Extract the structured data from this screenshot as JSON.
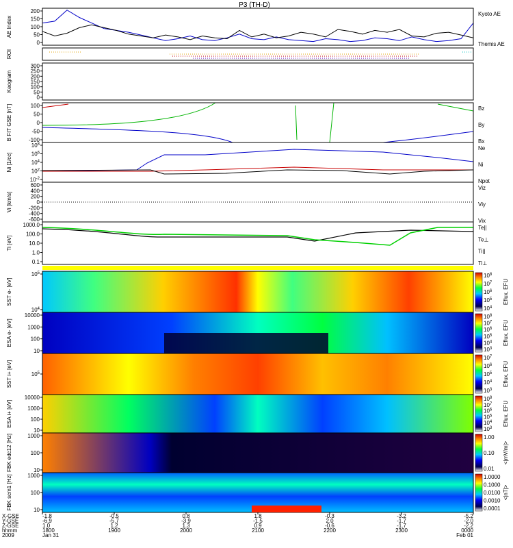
{
  "chart_data": {
    "type": "line",
    "title": "P3 (TH-D)",
    "panels": [
      {
        "id": "ae",
        "ylabel": "AE Index",
        "yticks": [
          "200",
          "150",
          "100",
          "50",
          "0"
        ],
        "legend": [
          "Kyoto AE",
          "Themis AE"
        ],
        "legend_colors": [
          "#0000c8",
          "#000000"
        ],
        "ylim": [
          0,
          200
        ],
        "series": [
          {
            "name": "Kyoto AE",
            "values": [
              120,
              130,
              190,
              150,
              120,
              90,
              80,
              70,
              55,
              40,
              25,
              35,
              50,
              30,
              25,
              40,
              60,
              35,
              30,
              45,
              30,
              25,
              20,
              35,
              30,
              20,
              25,
              40,
              35,
              25,
              45,
              30,
              20,
              25,
              35,
              120
            ]
          },
          {
            "name": "Themis AE",
            "values": [
              75,
              50,
              65,
              95,
              110,
              95,
              80,
              60,
              50,
              40,
              55,
              45,
              30,
              50,
              40,
              35,
              80,
              45,
              60,
              40,
              50,
              70,
              60,
              45,
              85,
              75,
              60,
              80,
              70,
              85,
              50,
              45,
              65,
              70,
              55,
              40
            ]
          }
        ]
      },
      {
        "id": "roi",
        "ylabel": "ROI"
      },
      {
        "id": "kp",
        "ylabel": "Keogram",
        "yticks": [
          "300",
          "250",
          "200",
          "150",
          "100",
          "50",
          "0"
        ]
      },
      {
        "id": "b",
        "ylabel": "B FIT GSE [nT]",
        "yticks": [
          "100",
          "50",
          "0",
          "-50",
          "-100"
        ],
        "legend": [
          "Bz",
          "By",
          "Bx"
        ],
        "legend_colors": [
          "#c80000",
          "#00b400",
          "#0000c8"
        ]
      },
      {
        "id": "n",
        "ylabel": "Ni [1/cc]",
        "yticks": [
          "10^8",
          "10^6",
          "10^4",
          "10^2",
          "10^-2"
        ],
        "legend": [
          "Ne",
          "Ni",
          "Npot"
        ],
        "legend_colors": [
          "#c80000",
          "#0000c8",
          "#000080"
        ]
      },
      {
        "id": "v",
        "ylabel": "Vi [km/s]",
        "yticks": [
          "600",
          "400",
          "200",
          "0",
          "-200",
          "-400",
          "-600"
        ],
        "legend": [
          "Viz",
          "Viy",
          "Vix"
        ],
        "legend_colors": [
          "#c80000",
          "#00b400",
          "#0000c8"
        ]
      },
      {
        "id": "t",
        "ylabel": "Ti [eV]",
        "yticks": [
          "1000.0",
          "100.0",
          "10.0",
          "1.0",
          "0.1"
        ],
        "legend": [
          "Te||",
          "Te⊥",
          "Ti||",
          "Ti⊥"
        ],
        "legend_colors": [
          "#000000",
          "#c80000",
          "#00b400",
          "#0000c8"
        ]
      },
      {
        "id": "sst_e",
        "ylabel": "SST e- [eV]",
        "yticks": [
          "10^5",
          "10^4"
        ]
      },
      {
        "id": "esa_e",
        "ylabel": "ESA e- [eV]",
        "yticks": [
          "10000",
          "1000",
          "100",
          "10"
        ]
      },
      {
        "id": "sst_i",
        "ylabel": "SST i+ [eV]",
        "yticks": [
          "10^5"
        ]
      },
      {
        "id": "esa_i",
        "ylabel": "ESA i+ [eV]",
        "yticks": [
          "10000",
          "1000",
          "100",
          "10"
        ]
      },
      {
        "id": "fbk1",
        "ylabel": "FBK edc12 [Hz]",
        "yticks": [
          "1000",
          "100",
          "10"
        ]
      },
      {
        "id": "fbk2",
        "ylabel": "FBK scm1 [Hz]",
        "yticks": [
          "1000",
          "100",
          "10"
        ]
      }
    ],
    "colorbars": [
      {
        "label": "Eflux, EFU",
        "ticks": [
          "10^8",
          "10^7",
          "10^6",
          "10^5",
          "10^4"
        ]
      },
      {
        "label": "Eflux, EFU",
        "ticks": [
          "10^8",
          "10^7",
          "10^6",
          "10^5",
          "10^4",
          "10^3"
        ]
      },
      {
        "label": "Eflux, EFU",
        "ticks": [
          "10^7",
          "10^6",
          "10^5",
          "10^4",
          "10^3"
        ]
      },
      {
        "label": "Eflux, EFU",
        "ticks": [
          "10^8",
          "10^7",
          "10^6",
          "10^5",
          "10^4",
          "10^3"
        ]
      },
      {
        "label": "<|mV/m|>",
        "ticks": [
          "1.00",
          "0.10",
          "0.01"
        ]
      },
      {
        "label": "<|nT|>",
        "ticks": [
          "1.0000",
          "0.1000",
          "0.0100",
          "0.0010",
          "0.0001"
        ]
      }
    ],
    "xaxis": {
      "row_labels": [
        "X-GSE",
        "Y-GSE",
        "Z-GSE",
        "hhmm",
        "2009"
      ],
      "ticks": [
        {
          "xgse": "-1.8",
          "ygse": "-6.9",
          "zgse": "1.0",
          "hhmm": "1800",
          "date": "Jan 31"
        },
        {
          "xgse": "-0.5",
          "ygse": "-5.7",
          "zgse": "1.2",
          "hhmm": "1900",
          "date": ""
        },
        {
          "xgse": "0.8",
          "ygse": "-3.9",
          "zgse": "1.3",
          "hhmm": "2000",
          "date": ""
        },
        {
          "xgse": "1.8",
          "ygse": "-1.5",
          "zgse": "0.9",
          "hhmm": "2100",
          "date": ""
        },
        {
          "xgse": "-0.3",
          "ygse": "2.0",
          "zgse": "-0.6",
          "hhmm": "2200",
          "date": ""
        },
        {
          "xgse": "-3.2",
          "ygse": "-1.7",
          "zgse": "-1.7",
          "hhmm": "2300",
          "date": ""
        },
        {
          "xgse": "-5.2",
          "ygse": "-2.0",
          "zgse": "-2.2",
          "hhmm": "0000",
          "date": "Feb 01"
        }
      ]
    }
  }
}
